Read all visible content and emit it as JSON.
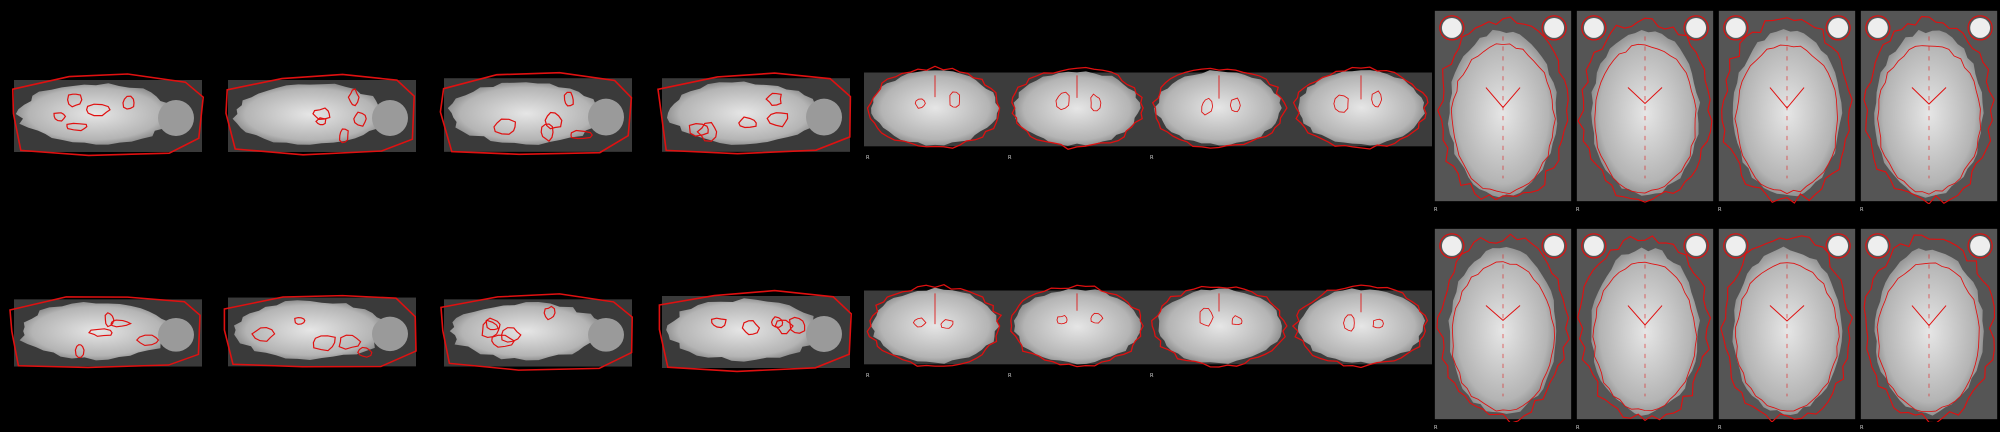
{
  "figure": {
    "background_color": "#000000",
    "overlay_color": "#e01010",
    "tissue_color": "#c8c8c8",
    "orientation_label": "R",
    "rows": [
      {
        "row_name": "top",
        "sagittal_count": 4,
        "coronal_count": 4,
        "axial_count": 4
      },
      {
        "row_name": "bottom",
        "sagittal_count": 4,
        "coronal_count": 4,
        "axial_count": 4
      }
    ]
  }
}
